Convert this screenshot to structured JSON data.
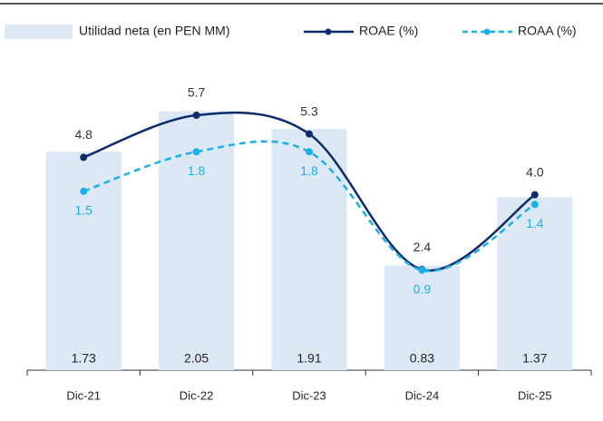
{
  "chart_data": {
    "type": "bar_line",
    "categories": [
      "Dic-21",
      "Dic-22",
      "Dic-23",
      "Dic-24",
      "Dic-25"
    ],
    "ylim": [
      0,
      2.5
    ],
    "y2lim": [
      0.25,
      7
    ],
    "y3lim": [
      0.14,
      2.54
    ],
    "series": [
      {
        "name": "Utilidad neta (en PEN MM)",
        "type": "bar",
        "color": "#dde8f5",
        "values": [
          1.73,
          2.05,
          1.91,
          0.83,
          1.37
        ]
      },
      {
        "name": "ROAE (%)",
        "type": "line",
        "axis": "y2",
        "color": "#0d2b6b",
        "label_color": "#333333",
        "values": [
          4.8,
          5.7,
          5.3,
          2.4,
          4.0
        ],
        "value_labels": [
          "4.8",
          "5.7",
          "5.3",
          "2.4",
          "4.0"
        ]
      },
      {
        "name": "ROAA (%)",
        "type": "line",
        "axis": "y3",
        "dashed": true,
        "color": "#1ab0e8",
        "label_color": "#1ab0e8",
        "values": [
          1.5,
          1.8,
          1.8,
          0.9,
          1.4
        ]
      }
    ]
  }
}
